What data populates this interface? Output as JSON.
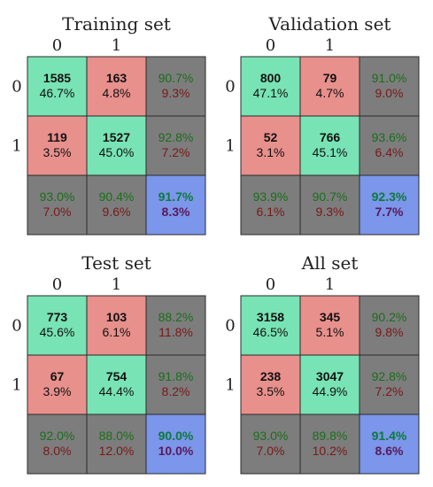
{
  "colors": {
    "correct_cell": "#78e3b4",
    "wrong_cell": "#e8908c",
    "summary_cell": "#7d7d7d",
    "total_cell": "#7b96ea",
    "good_text": "#1a6e1a",
    "bad_text": "#7a1818",
    "total_good_text": "#0b7a3c",
    "total_bad_text": "#5a1a5a",
    "cell_border": "#2a2a2a"
  },
  "chart_data": [
    {
      "type": "heatmap",
      "title": "Training set",
      "classes": [
        "0",
        "1"
      ],
      "cells": [
        [
          {
            "count": "1585",
            "pct": "46.7%"
          },
          {
            "count": "163",
            "pct": "4.8%"
          }
        ],
        [
          {
            "count": "119",
            "pct": "3.5%"
          },
          {
            "count": "1527",
            "pct": "45.0%"
          }
        ]
      ],
      "row_summary": [
        [
          "90.7%",
          "9.3%"
        ],
        [
          "92.8%",
          "7.2%"
        ]
      ],
      "col_summary": [
        [
          "93.0%",
          "7.0%"
        ],
        [
          "90.4%",
          "9.6%"
        ]
      ],
      "total": [
        "91.7%",
        "8.3%"
      ]
    },
    {
      "type": "heatmap",
      "title": "Validation set",
      "classes": [
        "0",
        "1"
      ],
      "cells": [
        [
          {
            "count": "800",
            "pct": "47.1%"
          },
          {
            "count": "79",
            "pct": "4.7%"
          }
        ],
        [
          {
            "count": "52",
            "pct": "3.1%"
          },
          {
            "count": "766",
            "pct": "45.1%"
          }
        ]
      ],
      "row_summary": [
        [
          "91.0%",
          "9.0%"
        ],
        [
          "93.6%",
          "6.4%"
        ]
      ],
      "col_summary": [
        [
          "93.9%",
          "6.1%"
        ],
        [
          "90.7%",
          "9.3%"
        ]
      ],
      "total": [
        "92.3%",
        "7.7%"
      ]
    },
    {
      "type": "heatmap",
      "title": "Test set",
      "classes": [
        "0",
        "1"
      ],
      "cells": [
        [
          {
            "count": "773",
            "pct": "45.6%"
          },
          {
            "count": "103",
            "pct": "6.1%"
          }
        ],
        [
          {
            "count": "67",
            "pct": "3.9%"
          },
          {
            "count": "754",
            "pct": "44.4%"
          }
        ]
      ],
      "row_summary": [
        [
          "88.2%",
          "11.8%"
        ],
        [
          "91.8%",
          "8.2%"
        ]
      ],
      "col_summary": [
        [
          "92.0%",
          "8.0%"
        ],
        [
          "88.0%",
          "12.0%"
        ]
      ],
      "total": [
        "90.0%",
        "10.0%"
      ]
    },
    {
      "type": "heatmap",
      "title": "All set",
      "classes": [
        "0",
        "1"
      ],
      "cells": [
        [
          {
            "count": "3158",
            "pct": "46.5%"
          },
          {
            "count": "345",
            "pct": "5.1%"
          }
        ],
        [
          {
            "count": "238",
            "pct": "3.5%"
          },
          {
            "count": "3047",
            "pct": "44.9%"
          }
        ]
      ],
      "row_summary": [
        [
          "90.2%",
          "9.8%"
        ],
        [
          "92.8%",
          "7.2%"
        ]
      ],
      "col_summary": [
        [
          "93.0%",
          "7.0%"
        ],
        [
          "89.8%",
          "10.2%"
        ]
      ],
      "total": [
        "91.4%",
        "8.6%"
      ]
    }
  ]
}
